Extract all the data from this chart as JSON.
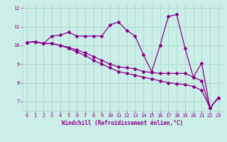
{
  "xlabel": "Windchill (Refroidissement éolien,°C)",
  "bg_color": "#cceee8",
  "grid_color": "#aaddcc",
  "line_color": "#880088",
  "xlim": [
    -0.5,
    23.5
  ],
  "ylim": [
    6.5,
    12.2
  ],
  "yticks": [
    7,
    8,
    9,
    10,
    11,
    12
  ],
  "xticks": [
    0,
    1,
    2,
    3,
    4,
    5,
    6,
    7,
    8,
    9,
    10,
    11,
    12,
    13,
    14,
    15,
    16,
    17,
    18,
    19,
    20,
    21,
    22,
    23
  ],
  "line1_y": [
    10.15,
    10.2,
    10.1,
    10.5,
    10.55,
    10.7,
    10.5,
    10.5,
    10.5,
    10.5,
    11.1,
    11.25,
    10.8,
    10.5,
    9.5,
    8.6,
    10.0,
    11.55,
    11.65,
    9.85,
    8.3,
    9.05,
    6.65,
    7.2
  ],
  "line2_y": [
    10.15,
    10.2,
    10.1,
    10.1,
    10.0,
    9.9,
    9.75,
    9.6,
    9.4,
    9.2,
    9.0,
    8.85,
    8.8,
    8.75,
    8.6,
    8.55,
    8.5,
    8.5,
    8.5,
    8.5,
    8.3,
    8.1,
    6.65,
    7.2
  ],
  "line3_y": [
    10.15,
    10.2,
    10.1,
    10.1,
    10.0,
    9.85,
    9.65,
    9.45,
    9.2,
    9.0,
    8.8,
    8.6,
    8.5,
    8.4,
    8.3,
    8.2,
    8.1,
    8.0,
    7.95,
    7.9,
    7.8,
    7.6,
    6.65,
    7.2
  ],
  "markersize": 2.0
}
